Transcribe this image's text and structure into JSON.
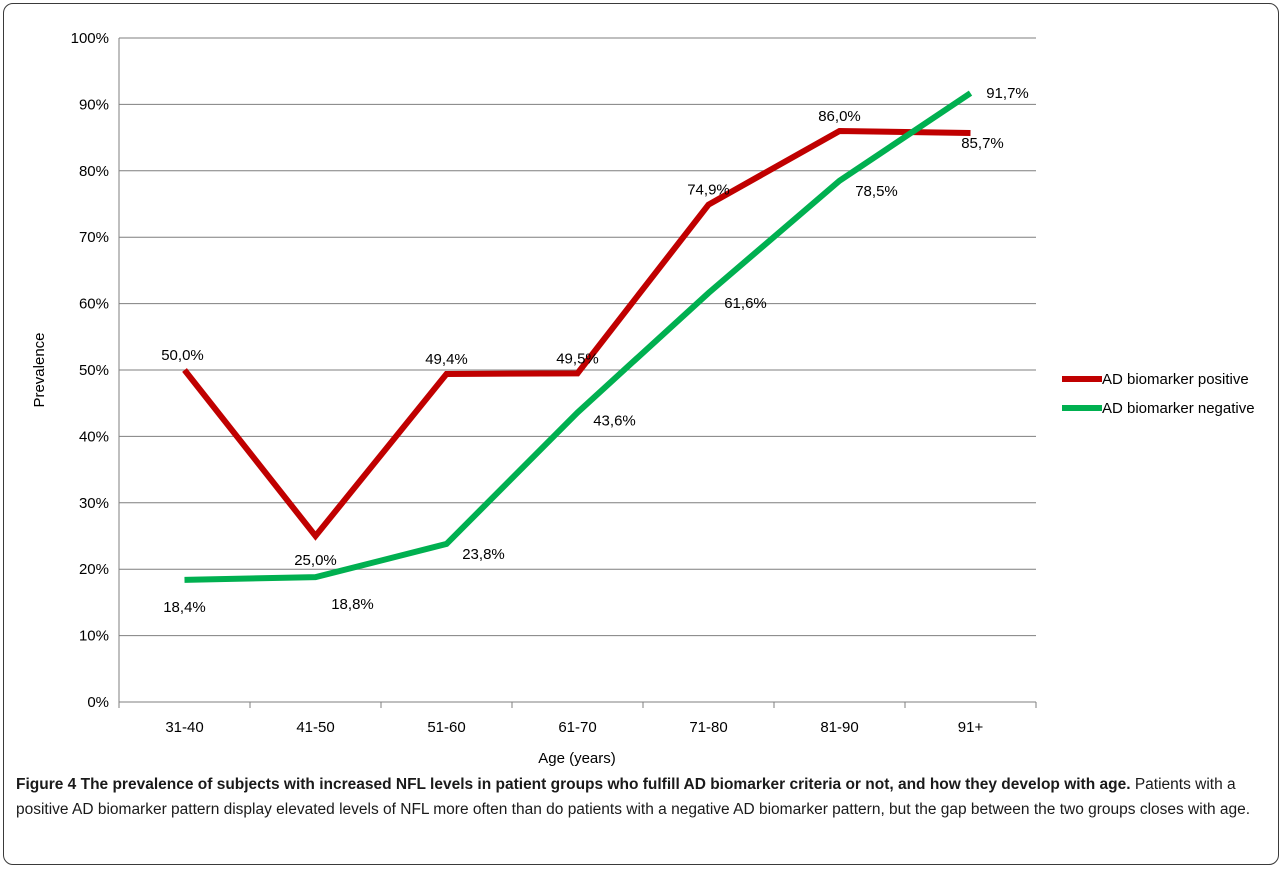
{
  "chart_data": {
    "type": "line",
    "categories": [
      "31-40",
      "41-50",
      "51-60",
      "61-70",
      "71-80",
      "81-90",
      "91+"
    ],
    "series": [
      {
        "name": "AD biomarker positive",
        "color": "#c00000",
        "values": [
          50.0,
          25.0,
          49.4,
          49.5,
          74.9,
          86.0,
          85.7
        ],
        "labels": [
          "50,0%",
          "25,0%",
          "49,4%",
          "49,5%",
          "74,9%",
          "86,0%",
          "85,7%"
        ]
      },
      {
        "name": "AD biomarker negative",
        "color": "#00b050",
        "values": [
          18.4,
          18.8,
          23.8,
          43.6,
          61.6,
          78.5,
          91.7
        ],
        "labels": [
          "18,4%",
          "18,8%",
          "23,8%",
          "43,6%",
          "61,6%",
          "78,5%",
          "91,7%"
        ]
      }
    ],
    "xlabel": "Age (years)",
    "ylabel": "Prevalence",
    "ylim": [
      0,
      100
    ],
    "yticks": [
      "0%",
      "10%",
      "20%",
      "30%",
      "40%",
      "50%",
      "60%",
      "70%",
      "80%",
      "90%",
      "100%"
    ],
    "grid": true,
    "legend": "right"
  },
  "caption": {
    "bold": "Figure 4 The prevalence of subjects with increased NFL levels in patient groups who fulfill AD biomarker criteria or not, and how they develop with age.",
    "text": " Patients with a positive AD biomarker pattern display elevated levels of NFL more often than do patients with a negative AD biomarker pattern, but the gap between the two groups closes with age."
  }
}
